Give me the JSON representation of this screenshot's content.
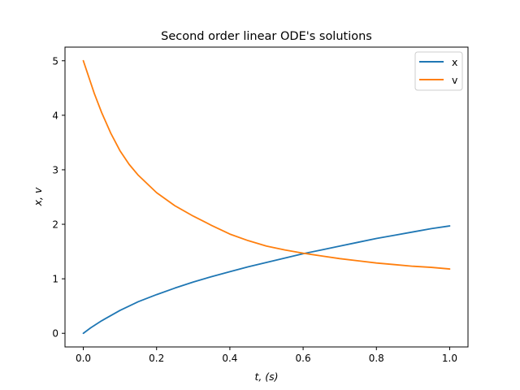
{
  "chart_data": {
    "type": "line",
    "title": "Second order linear ODE's solutions",
    "xlabel": "t,  (s)",
    "ylabel": "x,  v",
    "xlim": [
      -0.05,
      1.05
    ],
    "ylim": [
      -0.25,
      5.25
    ],
    "xticks": [
      0.0,
      0.2,
      0.4,
      0.6,
      0.8,
      1.0
    ],
    "xtick_labels": [
      "0.0",
      "0.2",
      "0.4",
      "0.6",
      "0.8",
      "1.0"
    ],
    "yticks": [
      0,
      1,
      2,
      3,
      4,
      5
    ],
    "ytick_labels": [
      "0",
      "1",
      "2",
      "3",
      "4",
      "5"
    ],
    "grid": false,
    "legend_position": "top-right",
    "series": [
      {
        "name": "x",
        "color": "#1f77b4",
        "x": [
          0.0,
          0.01,
          0.02,
          0.05,
          0.1,
          0.15,
          0.2,
          0.25,
          0.3,
          0.35,
          0.4,
          0.45,
          0.5,
          0.55,
          0.6,
          0.65,
          0.7,
          0.75,
          0.8,
          0.85,
          0.9,
          0.95,
          1.0
        ],
        "y": [
          0.0,
          0.05,
          0.1,
          0.23,
          0.42,
          0.58,
          0.71,
          0.83,
          0.94,
          1.04,
          1.13,
          1.22,
          1.3,
          1.38,
          1.46,
          1.53,
          1.6,
          1.67,
          1.74,
          1.8,
          1.86,
          1.92,
          1.97
        ]
      },
      {
        "name": "v",
        "color": "#ff7f0e",
        "x": [
          0.0,
          0.01,
          0.02,
          0.03,
          0.05,
          0.075,
          0.1,
          0.125,
          0.15,
          0.2,
          0.25,
          0.3,
          0.35,
          0.4,
          0.45,
          0.5,
          0.55,
          0.6,
          0.65,
          0.7,
          0.75,
          0.8,
          0.85,
          0.9,
          0.95,
          1.0
        ],
        "y": [
          5.0,
          4.8,
          4.6,
          4.4,
          4.05,
          3.67,
          3.35,
          3.1,
          2.9,
          2.58,
          2.34,
          2.15,
          1.98,
          1.82,
          1.7,
          1.6,
          1.53,
          1.47,
          1.42,
          1.37,
          1.33,
          1.29,
          1.26,
          1.23,
          1.21,
          1.18
        ]
      }
    ]
  }
}
